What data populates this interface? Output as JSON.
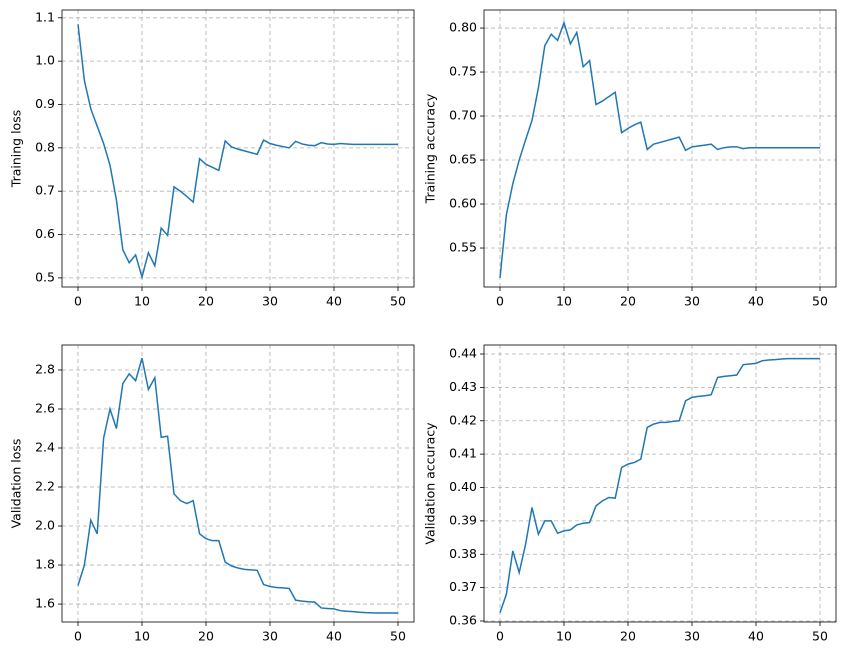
{
  "chart_data": [
    {
      "type": "line",
      "ylabel": "Training loss",
      "color": "#1f77b4",
      "grid": true,
      "x": [
        0,
        1,
        2,
        3,
        4,
        5,
        6,
        7,
        8,
        9,
        10,
        11,
        12,
        13,
        14,
        15,
        16,
        17,
        18,
        19,
        20,
        21,
        22,
        23,
        24,
        25,
        26,
        27,
        28,
        29,
        30,
        31,
        32,
        33,
        34,
        35,
        36,
        37,
        38,
        39,
        40,
        41,
        42,
        43,
        44,
        45,
        46,
        47,
        48,
        49,
        50
      ],
      "values": [
        1.085,
        0.955,
        0.89,
        0.85,
        0.81,
        0.76,
        0.68,
        0.565,
        0.535,
        0.553,
        0.502,
        0.558,
        0.528,
        0.615,
        0.598,
        0.71,
        0.7,
        0.688,
        0.675,
        0.775,
        0.762,
        0.755,
        0.748,
        0.816,
        0.802,
        0.797,
        0.793,
        0.789,
        0.785,
        0.818,
        0.81,
        0.806,
        0.803,
        0.8,
        0.815,
        0.809,
        0.806,
        0.805,
        0.812,
        0.809,
        0.808,
        0.81,
        0.809,
        0.808,
        0.808,
        0.808,
        0.808,
        0.808,
        0.808,
        0.808,
        0.808
      ],
      "xlim": [
        -2.5,
        52.5
      ],
      "ylim": [
        0.479,
        1.118
      ],
      "xticks": [
        0,
        10,
        20,
        30,
        40,
        50
      ],
      "yticks": [
        0.5,
        0.6,
        0.7,
        0.8,
        0.9,
        {
          "value": 1,
          "label": "1.0"
        },
        1.1
      ]
    },
    {
      "type": "line",
      "ylabel": "Training accuracy",
      "color": "#1f77b4",
      "grid": true,
      "x": [
        0,
        1,
        2,
        3,
        4,
        5,
        6,
        7,
        8,
        9,
        10,
        11,
        12,
        13,
        14,
        15,
        16,
        17,
        18,
        19,
        20,
        21,
        22,
        23,
        24,
        25,
        26,
        27,
        28,
        29,
        30,
        31,
        32,
        33,
        34,
        35,
        36,
        37,
        38,
        39,
        40,
        41,
        42,
        43,
        44,
        45,
        46,
        47,
        48,
        49,
        50
      ],
      "values": [
        0.516,
        0.588,
        0.623,
        0.65,
        0.673,
        0.695,
        0.732,
        0.78,
        0.793,
        0.786,
        0.806,
        0.782,
        0.795,
        0.756,
        0.763,
        0.713,
        0.717,
        0.722,
        0.727,
        0.681,
        0.686,
        0.69,
        0.693,
        0.662,
        0.668,
        0.67,
        0.672,
        0.674,
        0.676,
        0.661,
        0.665,
        0.666,
        0.667,
        0.668,
        0.662,
        0.664,
        0.665,
        0.665,
        0.663,
        0.664,
        0.664,
        0.664,
        0.664,
        0.664,
        0.664,
        0.664,
        0.664,
        0.664,
        0.664,
        0.664,
        0.664
      ],
      "xlim": [
        -2.5,
        52.5
      ],
      "ylim": [
        0.5057,
        0.8205
      ],
      "xticks": [
        0,
        10,
        20,
        30,
        40,
        50
      ],
      "yticks": [
        0.55,
        {
          "value": 0.6,
          "label": "0.60"
        },
        0.65,
        {
          "value": 0.7,
          "label": "0.70"
        },
        0.75,
        {
          "value": 0.8,
          "label": "0.80"
        }
      ]
    },
    {
      "type": "line",
      "ylabel": "Validation loss",
      "color": "#1f77b4",
      "grid": true,
      "x": [
        0,
        1,
        2,
        3,
        4,
        5,
        6,
        7,
        8,
        9,
        10,
        11,
        12,
        13,
        14,
        15,
        16,
        17,
        18,
        19,
        20,
        21,
        22,
        23,
        24,
        25,
        26,
        27,
        28,
        29,
        30,
        31,
        32,
        33,
        34,
        35,
        36,
        37,
        38,
        39,
        40,
        41,
        42,
        43,
        44,
        45,
        46,
        47,
        48,
        49,
        50
      ],
      "values": [
        1.695,
        1.8,
        2.03,
        1.96,
        2.45,
        2.6,
        2.5,
        2.73,
        2.78,
        2.745,
        2.86,
        2.7,
        2.76,
        2.455,
        2.46,
        2.165,
        2.13,
        2.115,
        2.13,
        1.96,
        1.935,
        1.925,
        1.925,
        1.815,
        1.795,
        1.785,
        1.778,
        1.775,
        1.773,
        1.7,
        1.69,
        1.685,
        1.683,
        1.68,
        1.62,
        1.615,
        1.612,
        1.61,
        1.58,
        1.577,
        1.575,
        1.566,
        1.563,
        1.561,
        1.558,
        1.556,
        1.555,
        1.554,
        1.554,
        1.554,
        1.554
      ],
      "xlim": [
        -2.5,
        52.5
      ],
      "ylim": [
        1.508,
        2.928
      ],
      "xticks": [
        0,
        10,
        20,
        30,
        40,
        50
      ],
      "yticks": [
        1.6,
        1.8,
        {
          "value": 2,
          "label": "2.0"
        },
        2.2,
        2.4,
        2.6,
        2.8
      ]
    },
    {
      "type": "line",
      "ylabel": "Validation accuracy",
      "color": "#1f77b4",
      "grid": true,
      "x": [
        0,
        1,
        2,
        3,
        4,
        5,
        6,
        7,
        8,
        9,
        10,
        11,
        12,
        13,
        14,
        15,
        16,
        17,
        18,
        19,
        20,
        21,
        22,
        23,
        24,
        25,
        26,
        27,
        28,
        29,
        30,
        31,
        32,
        33,
        34,
        35,
        36,
        37,
        38,
        39,
        40,
        41,
        42,
        43,
        44,
        45,
        46,
        47,
        48,
        49,
        50
      ],
      "values": [
        0.3625,
        0.368,
        0.381,
        0.3745,
        0.383,
        0.394,
        0.386,
        0.39,
        0.39,
        0.3863,
        0.387,
        0.3873,
        0.3888,
        0.3893,
        0.3895,
        0.3945,
        0.396,
        0.397,
        0.3968,
        0.406,
        0.407,
        0.4075,
        0.4085,
        0.418,
        0.419,
        0.4195,
        0.4195,
        0.4198,
        0.42,
        0.426,
        0.427,
        0.4273,
        0.4275,
        0.4278,
        0.433,
        0.4333,
        0.4335,
        0.4337,
        0.4368,
        0.437,
        0.4372,
        0.438,
        0.4382,
        0.4383,
        0.4385,
        0.4386,
        0.4386,
        0.4386,
        0.4386,
        0.4386,
        0.4386
      ],
      "xlim": [
        -2.5,
        52.5
      ],
      "ylim": [
        0.3597,
        0.4427
      ],
      "xticks": [
        0,
        10,
        20,
        30,
        40,
        50
      ],
      "yticks": [
        0.36,
        0.37,
        0.38,
        0.39,
        {
          "value": 0.4,
          "label": "0.40"
        },
        0.41,
        0.42,
        0.43,
        0.44
      ]
    }
  ]
}
